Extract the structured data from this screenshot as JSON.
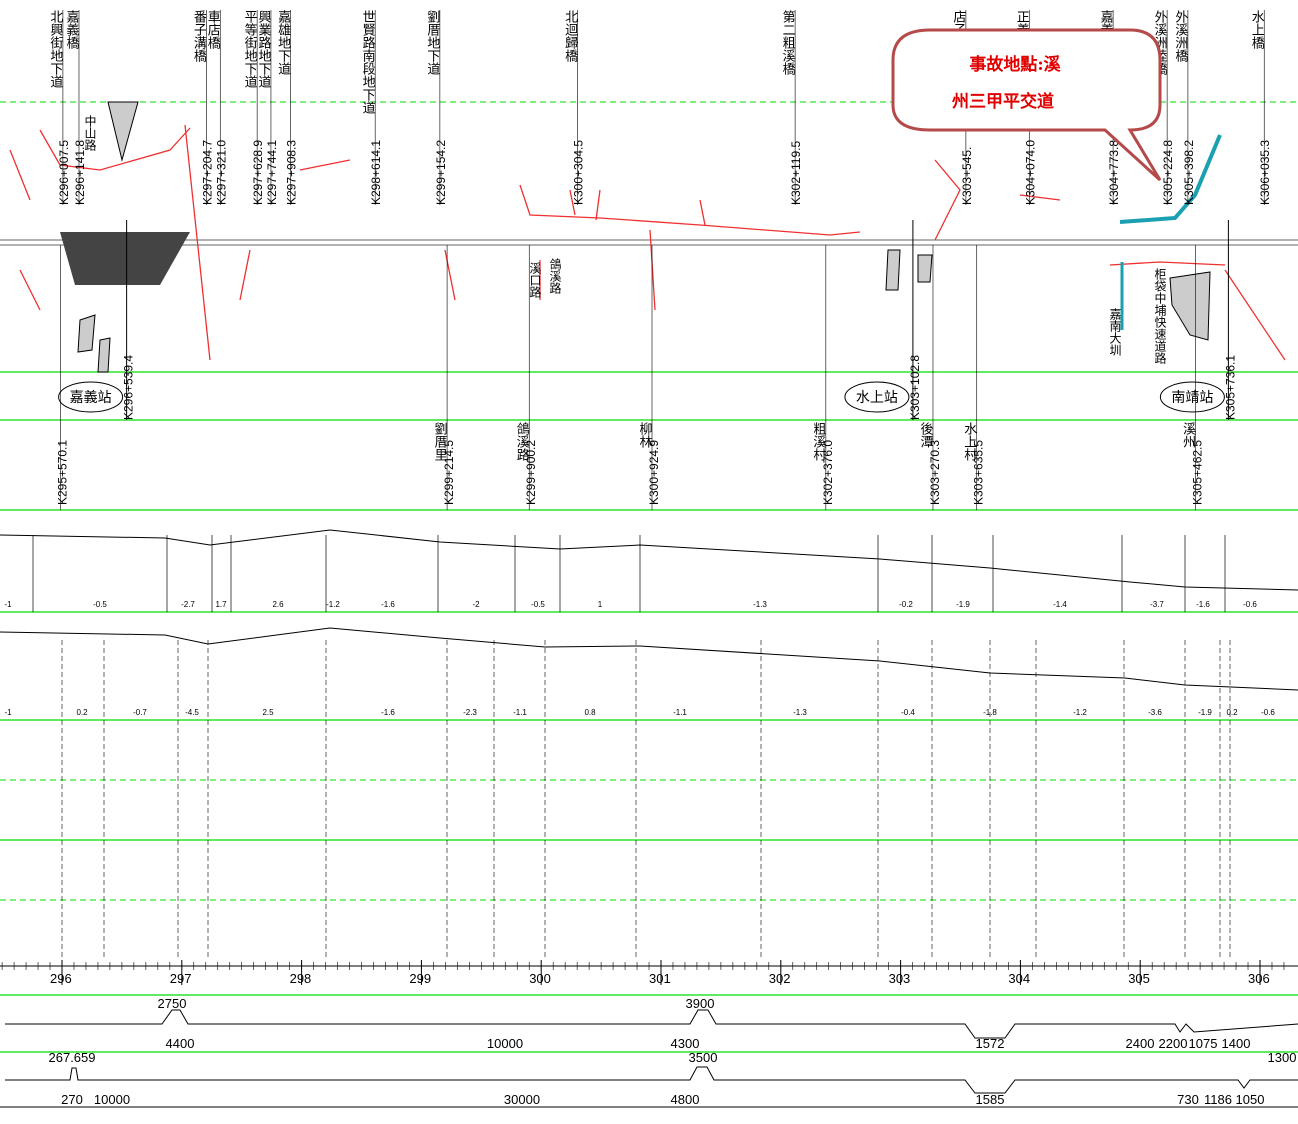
{
  "callout": {
    "lines": [
      "事故地點:溪",
      "州三甲平交道"
    ]
  },
  "top_structures": [
    {
      "name": "北興街地下道",
      "km": "K296+007.5"
    },
    {
      "name": "嘉義橋",
      "km": "K296+141.8"
    },
    {
      "name": "番子溝橋",
      "km": "K297+204.7"
    },
    {
      "name": "車店橋",
      "km": "K297+321.0"
    },
    {
      "name": "平等街地下道",
      "km": "K297+628.9"
    },
    {
      "name": "興業路地下道",
      "km": "K297+744.1"
    },
    {
      "name": "嘉雄地下道",
      "km": "K297+908.3"
    },
    {
      "name": "世賢路南段地下道",
      "km": "K298+614.1"
    },
    {
      "name": "劉厝地下道",
      "km": "K299+154.2"
    },
    {
      "name": "北迴歸橋",
      "km": "K300+304.5"
    },
    {
      "name": "第二粗溪橋",
      "km": "K302+119.5"
    },
    {
      "name": "店子溝",
      "km": "K303+545."
    },
    {
      "name": "正義路地下道",
      "km": "K304+074.0"
    },
    {
      "name": "嘉義大圳北幹線橋",
      "km": "K304+773.8"
    },
    {
      "name": "外溪洲陸橋",
      "km": "K305+224.8"
    },
    {
      "name": "外溪洲橋",
      "km": "K305+398.2"
    },
    {
      "name": "水上橋",
      "km": "K306+035.3"
    }
  ],
  "stations": [
    {
      "name": "嘉義站",
      "km": "K296+539.4"
    },
    {
      "name": "水上站",
      "km": "K303+102.8"
    },
    {
      "name": "南靖站",
      "km": "K305+736.1"
    }
  ],
  "crossings": [
    {
      "name": "",
      "km": "K295+570.1"
    },
    {
      "name": "劉厝里",
      "km": "K299+214.5"
    },
    {
      "name": "鴿溪路",
      "km": "K299+900.2"
    },
    {
      "name": "柳林",
      "km": "K300+924.9"
    },
    {
      "name": "粗溪村",
      "km": "K302+376.0"
    },
    {
      "name": "後潭",
      "km": "K303+270.3"
    },
    {
      "name": "水上村",
      "km": "K303+635.5"
    },
    {
      "name": "溪州",
      "km": "K305+462.5"
    }
  ],
  "map_labels": [
    "溪口路",
    "鴿溪路",
    "嘉南大圳",
    "柜袋中埔快速道路",
    "中山路"
  ],
  "grades_upper": [
    -1,
    -0.5,
    -2.7,
    1.7,
    2.6,
    -1.2,
    -1.6,
    -2,
    -0.5,
    1,
    -1.3,
    -0.2,
    -1.9,
    -1.4,
    -3.7,
    -1.6,
    -0.6
  ],
  "grades_lower": [
    -1,
    0.2,
    -0.7,
    -4.5,
    2.5,
    -1.6,
    -2.3,
    -1.1,
    0.8,
    -1.1,
    -1.3,
    -0.4,
    -1.8,
    -1.2,
    -3.6,
    -1.9,
    0.2,
    -0.6
  ],
  "km_scale": [
    296,
    297,
    298,
    299,
    300,
    301,
    302,
    303,
    304,
    305,
    306
  ],
  "curves_top": [
    2750,
    3900
  ],
  "curves_bottom": [
    4400,
    10000,
    4300,
    1572,
    2400,
    2200,
    1075,
    1400
  ],
  "vcurves_top": [
    267.659,
    3500,
    1300
  ],
  "vcurves_bottom": [
    270,
    10000,
    30000,
    4800,
    1585,
    730,
    1186,
    1050
  ]
}
